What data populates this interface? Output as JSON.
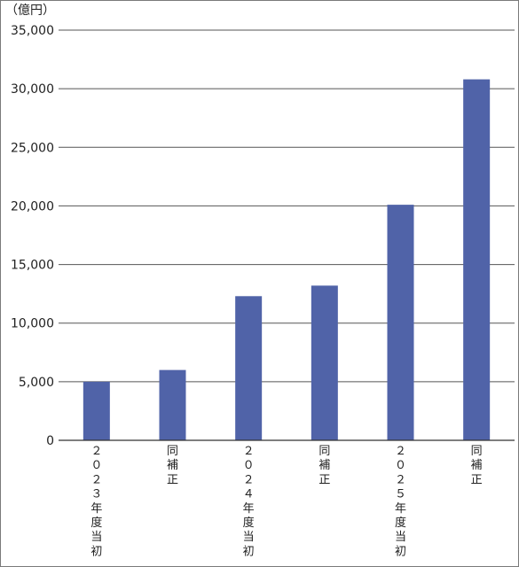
{
  "chart_data": {
    "type": "bar",
    "unit_label": "（億円）",
    "categories": [
      "２０２３年度当初",
      "同補正",
      "２０２４年度当初",
      "同補正",
      "２０２５年度当初",
      "同補正"
    ],
    "values": [
      5000,
      6000,
      12300,
      13200,
      20100,
      30800
    ],
    "ylim": [
      0,
      35000
    ],
    "yticks": [
      0,
      5000,
      10000,
      15000,
      20000,
      25000,
      30000,
      35000
    ],
    "ytick_labels": [
      "0",
      "5,000",
      "10,000",
      "15,000",
      "20,000",
      "25,000",
      "30,000",
      "35,000"
    ],
    "grid": true,
    "legend": "none",
    "bar_color": "#5063a8"
  }
}
